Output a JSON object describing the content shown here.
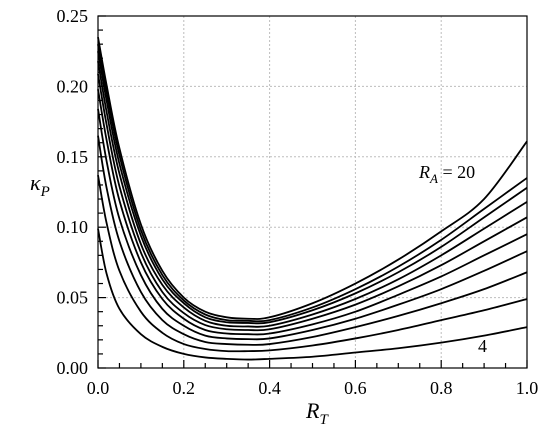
{
  "chart_data": {
    "type": "line",
    "xlabel_main": "R",
    "xlabel_sub": "T",
    "ylabel_main": "κ",
    "ylabel_sub": "P",
    "xlim": [
      0,
      1
    ],
    "ylim": [
      0,
      0.25
    ],
    "xticks": [
      "0.0",
      "0.2",
      "0.4",
      "0.6",
      "0.8",
      "1.0"
    ],
    "yticks": [
      "0.00",
      "0.05",
      "0.10",
      "0.15",
      "0.20",
      "0.25"
    ],
    "grid": true,
    "annotations": {
      "top_prefix": "R",
      "top_sub": "A",
      "top_suffix": " = 20",
      "bottom": "4"
    },
    "series": [
      {
        "x": [
          0,
          0.02,
          0.05,
          0.1,
          0.15,
          0.2,
          0.25,
          0.3,
          0.35,
          0.4,
          0.5,
          0.6,
          0.7,
          0.8,
          0.9,
          1.0
        ],
        "values": [
          0.099,
          0.067,
          0.042,
          0.024,
          0.015,
          0.01,
          0.0075,
          0.0065,
          0.006,
          0.0065,
          0.008,
          0.011,
          0.014,
          0.018,
          0.023,
          0.029
        ]
      },
      {
        "x": [
          0,
          0.02,
          0.05,
          0.1,
          0.15,
          0.2,
          0.25,
          0.3,
          0.35,
          0.4,
          0.5,
          0.6,
          0.7,
          0.8,
          0.9,
          1.0
        ],
        "values": [
          0.137,
          0.103,
          0.069,
          0.04,
          0.025,
          0.017,
          0.0135,
          0.012,
          0.012,
          0.0125,
          0.016,
          0.021,
          0.027,
          0.034,
          0.041,
          0.049
        ]
      },
      {
        "x": [
          0,
          0.02,
          0.05,
          0.1,
          0.15,
          0.2,
          0.25,
          0.3,
          0.35,
          0.4,
          0.5,
          0.6,
          0.7,
          0.8,
          0.9,
          1.0
        ],
        "values": [
          0.165,
          0.128,
          0.09,
          0.054,
          0.034,
          0.024,
          0.0185,
          0.017,
          0.0165,
          0.017,
          0.022,
          0.029,
          0.037,
          0.046,
          0.056,
          0.068
        ]
      },
      {
        "x": [
          0,
          0.02,
          0.05,
          0.1,
          0.15,
          0.2,
          0.25,
          0.3,
          0.35,
          0.4,
          0.5,
          0.6,
          0.7,
          0.8,
          0.9,
          1.0
        ],
        "values": [
          0.184,
          0.147,
          0.106,
          0.066,
          0.042,
          0.03,
          0.023,
          0.021,
          0.0205,
          0.021,
          0.027,
          0.035,
          0.045,
          0.056,
          0.069,
          0.083
        ]
      },
      {
        "x": [
          0,
          0.02,
          0.05,
          0.1,
          0.15,
          0.2,
          0.25,
          0.3,
          0.35,
          0.4,
          0.5,
          0.6,
          0.7,
          0.8,
          0.9,
          1.0
        ],
        "values": [
          0.198,
          0.162,
          0.119,
          0.075,
          0.049,
          0.035,
          0.027,
          0.0245,
          0.024,
          0.0245,
          0.031,
          0.04,
          0.052,
          0.065,
          0.08,
          0.095
        ]
      },
      {
        "x": [
          0,
          0.02,
          0.05,
          0.1,
          0.15,
          0.2,
          0.25,
          0.3,
          0.35,
          0.4,
          0.5,
          0.6,
          0.7,
          0.8,
          0.9,
          1.0
        ],
        "values": [
          0.209,
          0.173,
          0.129,
          0.082,
          0.054,
          0.039,
          0.0305,
          0.0275,
          0.027,
          0.0275,
          0.035,
          0.045,
          0.058,
          0.073,
          0.09,
          0.107
        ]
      },
      {
        "x": [
          0,
          0.02,
          0.05,
          0.1,
          0.15,
          0.2,
          0.25,
          0.3,
          0.35,
          0.4,
          0.5,
          0.6,
          0.7,
          0.8,
          0.9,
          1.0
        ],
        "values": [
          0.218,
          0.182,
          0.138,
          0.088,
          0.059,
          0.043,
          0.0335,
          0.03,
          0.0295,
          0.03,
          0.038,
          0.049,
          0.063,
          0.08,
          0.099,
          0.118
        ]
      },
      {
        "x": [
          0,
          0.02,
          0.05,
          0.1,
          0.15,
          0.2,
          0.25,
          0.3,
          0.35,
          0.4,
          0.5,
          0.6,
          0.7,
          0.8,
          0.9,
          1.0
        ],
        "values": [
          0.225,
          0.19,
          0.145,
          0.094,
          0.063,
          0.046,
          0.036,
          0.0325,
          0.032,
          0.0325,
          0.041,
          0.053,
          0.068,
          0.086,
          0.107,
          0.128
        ]
      },
      {
        "x": [
          0,
          0.02,
          0.05,
          0.1,
          0.15,
          0.2,
          0.25,
          0.3,
          0.35,
          0.4,
          0.5,
          0.6,
          0.7,
          0.8,
          0.9,
          1.0
        ],
        "values": [
          0.23,
          0.196,
          0.151,
          0.098,
          0.066,
          0.048,
          0.038,
          0.034,
          0.0335,
          0.034,
          0.043,
          0.056,
          0.072,
          0.091,
          0.113,
          0.135
        ]
      },
      {
        "x": [
          0,
          0.02,
          0.05,
          0.1,
          0.15,
          0.2,
          0.25,
          0.3,
          0.35,
          0.4,
          0.5,
          0.6,
          0.7,
          0.8,
          0.9,
          1.0
        ],
        "values": [
          0.235,
          0.201,
          0.156,
          0.102,
          0.069,
          0.05,
          0.04,
          0.036,
          0.035,
          0.036,
          0.046,
          0.06,
          0.077,
          0.097,
          0.12,
          0.161
        ]
      }
    ]
  }
}
